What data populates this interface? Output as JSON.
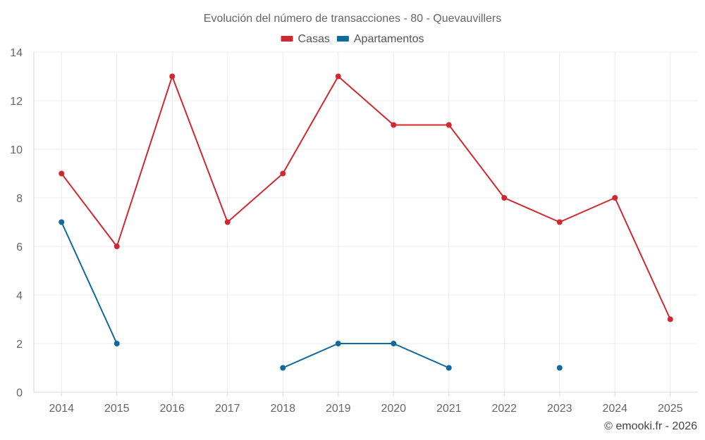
{
  "chart_data": {
    "type": "line",
    "title": "Evolución del número de transacciones - 80 - Quevauvillers",
    "categories": [
      "2014",
      "2015",
      "2016",
      "2017",
      "2018",
      "2019",
      "2020",
      "2021",
      "2022",
      "2023",
      "2024",
      "2025"
    ],
    "ylim": [
      0,
      14
    ],
    "yticks": [
      0,
      2,
      4,
      6,
      8,
      10,
      12,
      14
    ],
    "grid": true,
    "legend_position": "top-center",
    "series": [
      {
        "name": "Casas",
        "color": "#d0282e",
        "values": [
          9,
          6,
          13,
          7,
          9,
          13,
          11,
          11,
          8,
          7,
          8,
          3
        ]
      },
      {
        "name": "Apartamentos",
        "color": "#0d6a9c",
        "values": [
          7,
          2,
          null,
          null,
          1,
          2,
          2,
          1,
          null,
          1,
          null,
          null
        ]
      }
    ],
    "xlabel": "",
    "ylabel": ""
  },
  "credit": "© emooki.fr - 2026"
}
